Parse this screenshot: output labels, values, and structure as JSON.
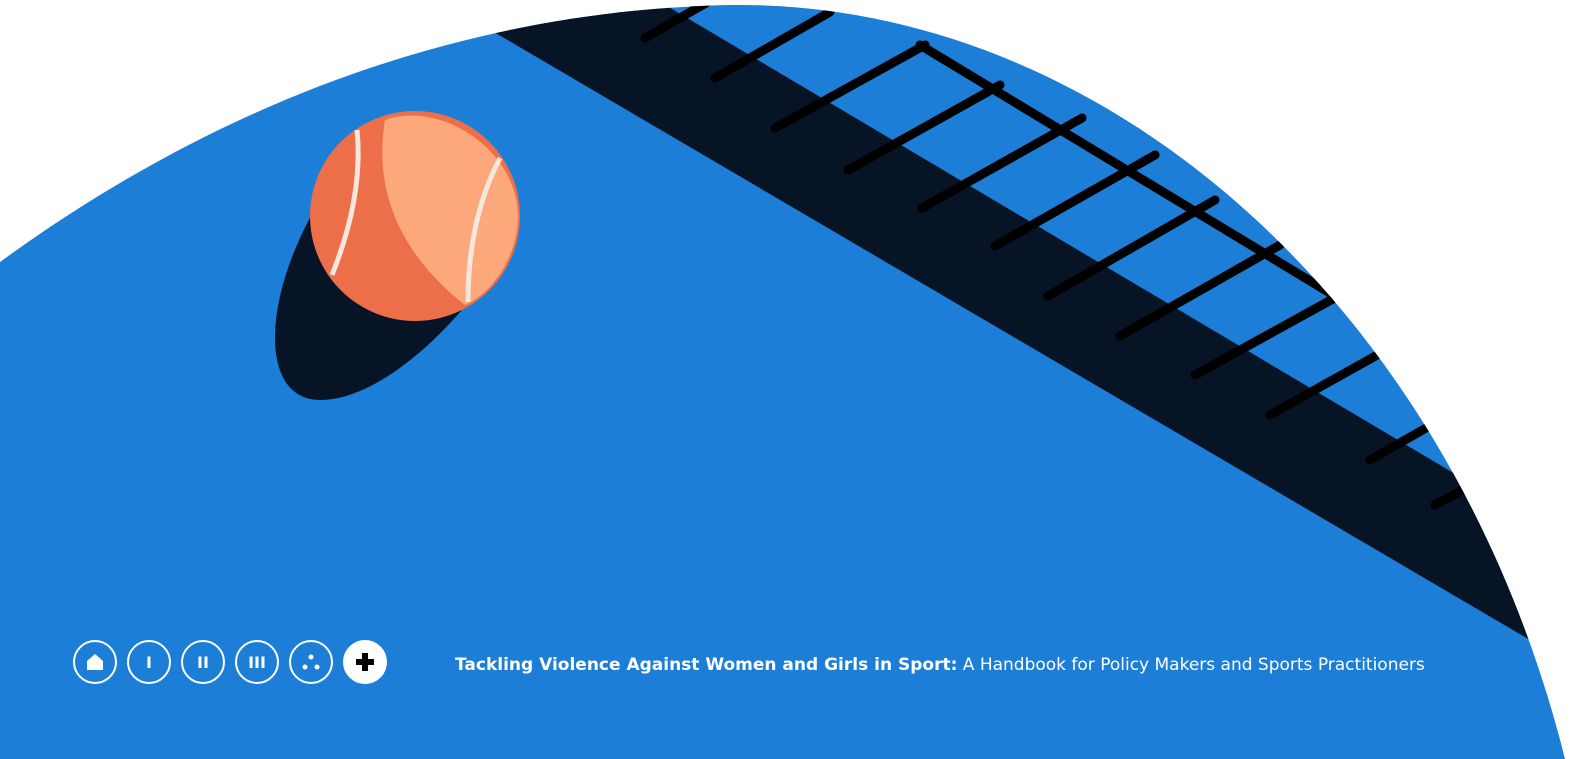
{
  "nav": {
    "items": [
      "I",
      "II",
      "III"
    ]
  },
  "footer": {
    "title_bold": "Tackling Violence Against Women and Girls in Sport:",
    "title_rest": "A Handbook for Policy Makers and Sports Practitioners"
  }
}
